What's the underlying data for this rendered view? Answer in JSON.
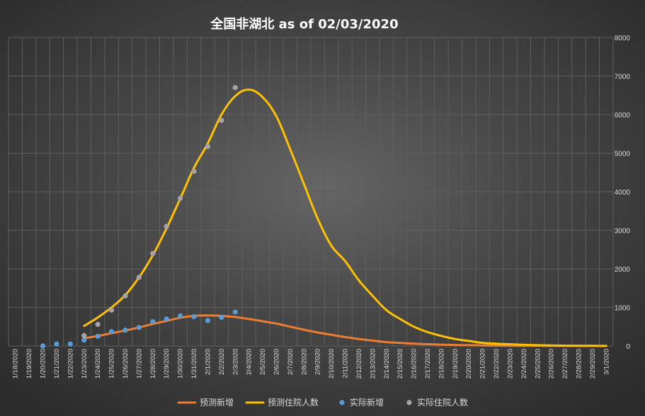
{
  "chart_data": {
    "type": "line",
    "title": "全国非湖北 as of 02/03/2020",
    "xlabel": "",
    "ylabel": "",
    "ylim": [
      0,
      8000
    ],
    "y_ticks": [
      0,
      1000,
      2000,
      3000,
      4000,
      5000,
      6000,
      7000,
      8000
    ],
    "grid": true,
    "legend_position": "bottom",
    "categories": [
      "1/18/2020",
      "1/19/2020",
      "1/20/2020",
      "1/21/2020",
      "1/22/2020",
      "1/23/2020",
      "1/24/2020",
      "1/25/2020",
      "1/26/2020",
      "1/27/2020",
      "1/28/2020",
      "1/29/2020",
      "1/30/2020",
      "1/31/2020",
      "2/1/2020",
      "2/2/2020",
      "2/3/2020",
      "2/4/2020",
      "2/5/2020",
      "2/6/2020",
      "2/7/2020",
      "2/8/2020",
      "2/9/2020",
      "2/10/2020",
      "2/11/2020",
      "2/12/2020",
      "2/13/2020",
      "2/14/2020",
      "2/15/2020",
      "2/16/2020",
      "2/17/2020",
      "2/18/2020",
      "2/19/2020",
      "2/20/2020",
      "2/21/2020",
      "2/22/2020",
      "2/23/2020",
      "2/24/2020",
      "2/25/2020",
      "2/26/2020",
      "2/27/2020",
      "2/28/2020",
      "2/29/2020",
      "3/1/2020"
    ],
    "series": [
      {
        "name": "预测新增",
        "kind": "line",
        "color": "#ed7d31",
        "values": [
          null,
          null,
          null,
          null,
          null,
          200,
          260,
          330,
          400,
          480,
          570,
          650,
          730,
          780,
          790,
          780,
          750,
          700,
          640,
          580,
          500,
          420,
          350,
          290,
          230,
          180,
          140,
          100,
          80,
          60,
          45,
          35,
          25,
          20,
          15,
          10,
          8,
          6,
          4,
          3,
          2,
          1,
          1,
          0
        ]
      },
      {
        "name": "预测住院人数",
        "kind": "line",
        "color": "#ffc000",
        "values": [
          null,
          null,
          null,
          null,
          null,
          520,
          740,
          1000,
          1320,
          1780,
          2350,
          3050,
          3820,
          4620,
          5250,
          6000,
          6480,
          6650,
          6450,
          5950,
          5100,
          4200,
          3300,
          2600,
          2200,
          1700,
          1300,
          930,
          700,
          500,
          360,
          260,
          180,
          130,
          80,
          60,
          45,
          30,
          20,
          12,
          8,
          5,
          3,
          2
        ]
      },
      {
        "name": "实际新增",
        "kind": "scatter",
        "color": "#5b9bd5",
        "values": [
          null,
          null,
          0,
          50,
          50,
          150,
          250,
          370,
          410,
          480,
          630,
          700,
          780,
          760,
          660,
          740,
          880,
          null,
          null,
          null,
          null,
          null,
          null,
          null,
          null,
          null,
          null,
          null,
          null,
          null,
          null,
          null,
          null,
          null,
          null,
          null,
          null,
          null,
          null,
          null,
          null,
          null,
          null,
          null
        ]
      },
      {
        "name": "实际住院人数",
        "kind": "scatter",
        "color": "#a5a5a5",
        "values": [
          null,
          null,
          null,
          null,
          null,
          270,
          560,
          930,
          1300,
          1780,
          2400,
          3100,
          3830,
          4530,
          5170,
          5850,
          6700,
          null,
          null,
          null,
          null,
          null,
          null,
          null,
          null,
          null,
          null,
          null,
          null,
          null,
          null,
          null,
          null,
          null,
          null,
          null,
          null,
          null,
          null,
          null,
          null,
          null,
          null,
          null
        ]
      }
    ]
  }
}
